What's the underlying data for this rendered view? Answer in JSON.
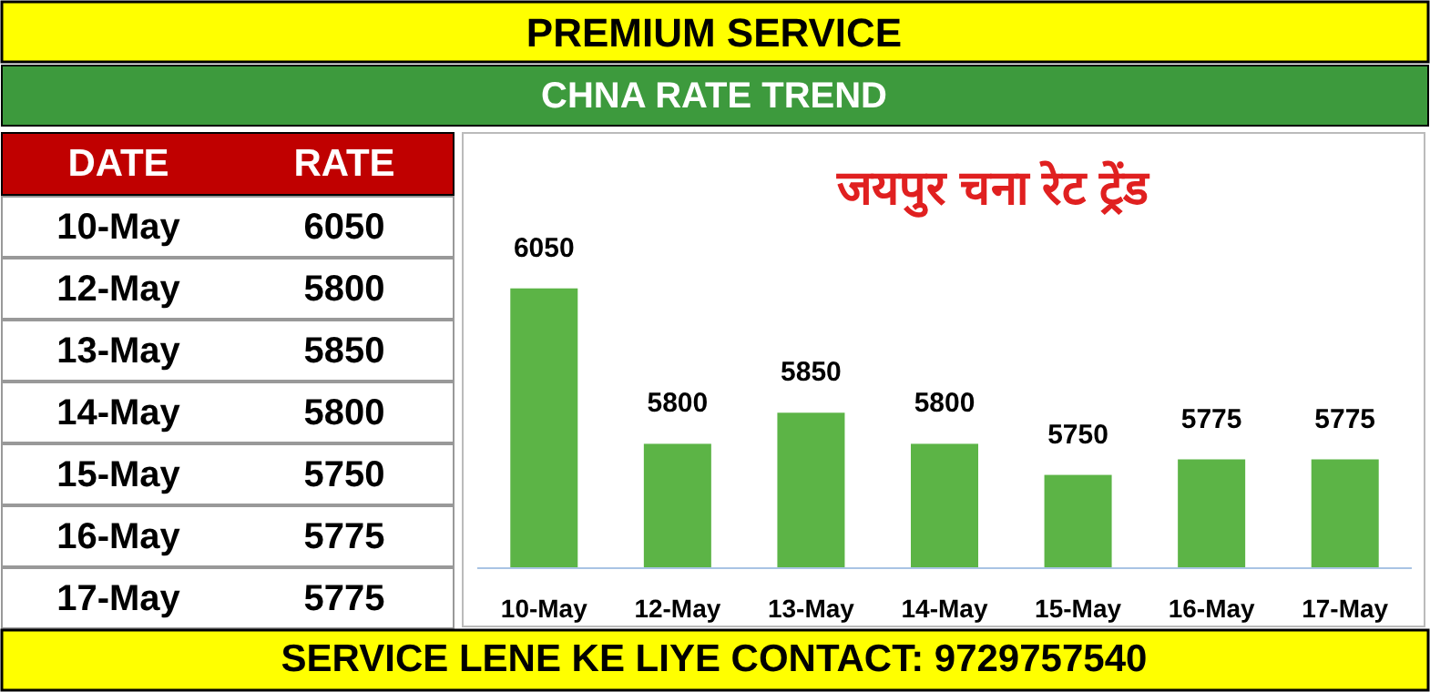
{
  "chart_data": [
    {
      "type": "other",
      "categories": [
        "10-May",
        "12-May",
        "13-May",
        "14-May",
        "15-May",
        "16-May",
        "17-May"
      ],
      "annotations": [
        "PREMIUM SERVICE",
        "DATE",
        "RATE",
        "6050",
        "5800",
        "5850",
        "5800",
        "5750",
        "5775",
        "5775",
        "SERVICE LENE KE LIYE CONTACT: 9729757540"
      ]
    },
    {
      "type": "bar",
      "title": "CHNA RATE TREND",
      "subtitle": "जयपुर चना रेट ट्रेंड",
      "categories": [
        "10-May",
        "12-May",
        "13-May",
        "14-May",
        "15-May",
        "16-May",
        "17-May"
      ],
      "values": [
        6050,
        5800,
        5850,
        5800,
        5750,
        5775,
        5775
      ],
      "color": "#5cb446",
      "ylim": [
        5600,
        6300
      ],
      "data_labels": true
    }
  ]
}
